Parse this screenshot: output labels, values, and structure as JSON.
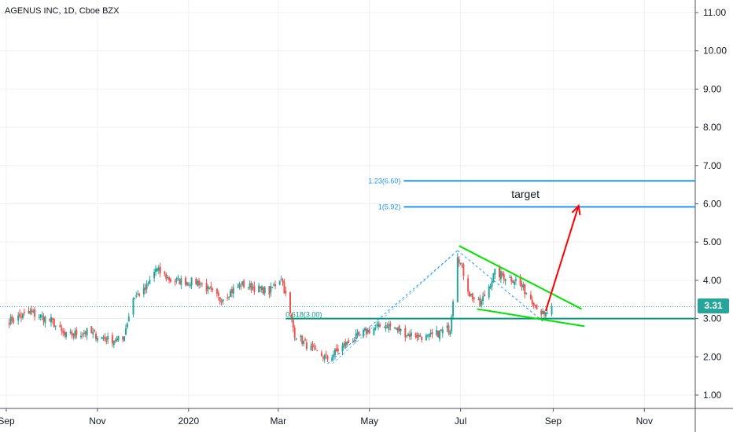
{
  "header": {
    "title": "AGENUS INC, 1D, Cboe BZX"
  },
  "last_price": "3.31",
  "colors": {
    "up": "#26a69a",
    "down": "#ef5350",
    "fib_level": "#2196f3",
    "support": "#089981",
    "wedge": "#00e400",
    "arrow": "#ff0000",
    "price_line": "#26a69a"
  },
  "chart_data": {
    "type": "candlestick",
    "x_ticks": [
      "Sep",
      "Nov",
      "2020",
      "Mar",
      "May",
      "Jul",
      "Sep",
      "Nov"
    ],
    "y_ticks": [
      "1.00",
      "2.00",
      "3.00",
      "4.00",
      "5.00",
      "6.00",
      "7.00",
      "8.00",
      "9.00",
      "10.00",
      "11.00"
    ],
    "ylim": [
      0.5,
      11.4
    ],
    "grid": true,
    "series": [
      {
        "values": [
          {
            "t": "2019-09-03",
            "c": 2.95
          },
          {
            "t": "2019-09-17",
            "c": 3.15
          },
          {
            "t": "2019-10-01",
            "c": 2.95
          },
          {
            "t": "2019-10-10",
            "c": 2.55
          },
          {
            "t": "2019-10-25",
            "c": 2.65
          },
          {
            "t": "2019-11-08",
            "c": 2.45
          },
          {
            "t": "2019-11-18",
            "c": 2.45
          },
          {
            "t": "2019-11-25",
            "c": 3.55
          },
          {
            "t": "2019-12-03",
            "c": 3.75
          },
          {
            "t": "2019-12-10",
            "c": 4.3
          },
          {
            "t": "2019-12-20",
            "c": 4.0
          },
          {
            "t": "2020-01-08",
            "c": 3.95
          },
          {
            "t": "2020-01-22",
            "c": 3.5
          },
          {
            "t": "2020-02-05",
            "c": 3.9
          },
          {
            "t": "2020-02-24",
            "c": 3.7
          },
          {
            "t": "2020-03-03",
            "c": 4.1
          },
          {
            "t": "2020-03-12",
            "c": 2.6
          },
          {
            "t": "2020-03-23",
            "c": 2.2
          },
          {
            "t": "2020-04-03",
            "c": 1.95
          },
          {
            "t": "2020-04-14",
            "c": 2.3
          },
          {
            "t": "2020-04-28",
            "c": 2.65
          },
          {
            "t": "2020-05-12",
            "c": 2.85
          },
          {
            "t": "2020-05-26",
            "c": 2.6
          },
          {
            "t": "2020-06-09",
            "c": 2.5
          },
          {
            "t": "2020-06-24",
            "c": 2.75
          },
          {
            "t": "2020-06-29",
            "c": 4.7
          },
          {
            "t": "2020-07-07",
            "c": 3.65
          },
          {
            "t": "2020-07-14",
            "c": 3.35
          },
          {
            "t": "2020-07-24",
            "c": 4.2
          },
          {
            "t": "2020-08-07",
            "c": 4.0
          },
          {
            "t": "2020-08-17",
            "c": 3.55
          },
          {
            "t": "2020-08-26",
            "c": 3.05
          },
          {
            "t": "2020-08-31",
            "c": 3.31
          }
        ]
      }
    ],
    "horizontal_levels": [
      {
        "label": "1.23(6.60)",
        "value": 6.6
      },
      {
        "label": "1(5.92)",
        "value": 5.92
      },
      {
        "label": "0.618(3.00)",
        "value": 3.0
      }
    ],
    "annotations": [
      {
        "text": "target",
        "value": 6.15
      }
    ]
  }
}
